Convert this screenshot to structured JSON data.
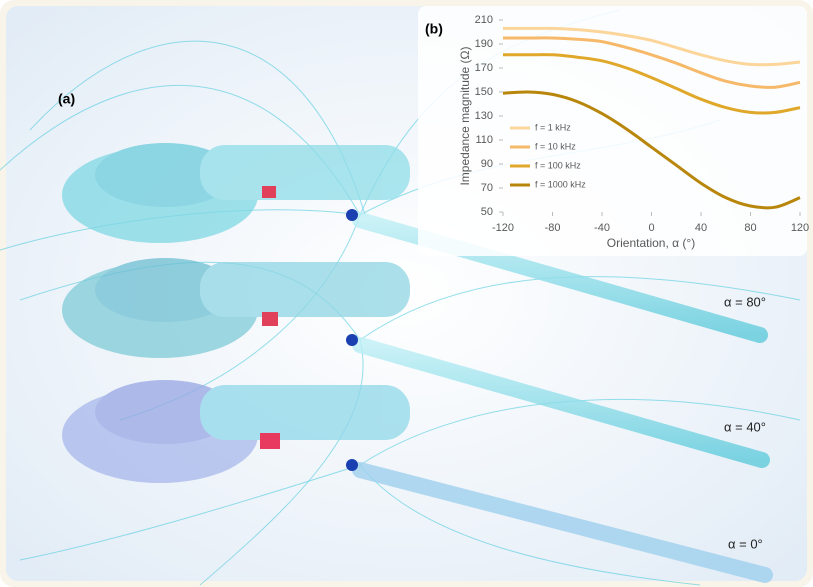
{
  "figure": {
    "panel_label": "(a)",
    "annotations": [
      "α = 80°",
      "α = 40°",
      "α = 0°"
    ]
  },
  "chart_data": {
    "type": "line",
    "panel_label": "(b)",
    "x_label": "Orientation, α (°)",
    "y_label": "Impedance magnitude (Ω)",
    "x": [
      -120,
      -100,
      -80,
      -60,
      -40,
      -20,
      0,
      20,
      40,
      60,
      80,
      100,
      120
    ],
    "series": [
      {
        "name": "f = 1 kHz",
        "color": "#fcd59a",
        "values": [
          203,
          203,
          203,
          202,
          200,
          197,
          193,
          187,
          181,
          176,
          173,
          173,
          175
        ]
      },
      {
        "name": "f = 10 kHz",
        "color": "#f6b96a",
        "values": [
          195,
          195,
          195,
          194,
          192,
          187,
          181,
          174,
          166,
          159,
          155,
          154,
          158
        ]
      },
      {
        "name": "f = 100 kHz",
        "color": "#e0a82a",
        "values": [
          181,
          181,
          181,
          179,
          176,
          170,
          162,
          153,
          144,
          137,
          133,
          133,
          137
        ]
      },
      {
        "name": "f = 1000 kHz",
        "color": "#b8860b",
        "values": [
          149,
          150,
          148,
          142,
          132,
          119,
          104,
          89,
          74,
          62,
          55,
          54,
          62
        ]
      }
    ],
    "xlim": [
      -120,
      120
    ],
    "xticks": [
      -120,
      -80,
      -40,
      0,
      40,
      80,
      120
    ],
    "ylim": [
      50,
      210
    ],
    "yticks": [
      50,
      70,
      90,
      110,
      130,
      150,
      170,
      190,
      210
    ],
    "grid": false,
    "legend": "left"
  }
}
